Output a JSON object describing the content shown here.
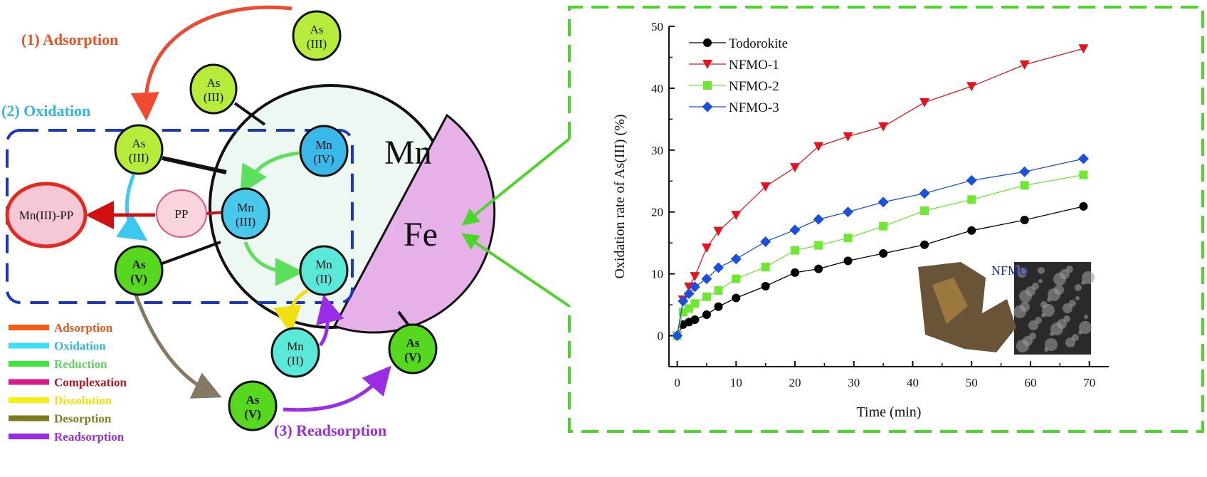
{
  "diagram": {
    "steps": {
      "adsorption": "(1) Adsorption",
      "oxidation": "(2) Oxidation",
      "readsorption": "(3) Readsorption"
    },
    "mineral_labels": {
      "mn": "Mn",
      "fe": "Fe"
    },
    "nodes": [
      {
        "id": "as3-top",
        "l1": "As",
        "l2": "(III)"
      },
      {
        "id": "as3-mid",
        "l1": "As",
        "l2": "(III)"
      },
      {
        "id": "as3-box",
        "l1": "As",
        "l2": "(III)"
      },
      {
        "id": "mn4",
        "l1": "Mn",
        "l2": "(IV)"
      },
      {
        "id": "mn3",
        "l1": "Mn",
        "l2": "(III)"
      },
      {
        "id": "mn2-in",
        "l1": "Mn",
        "l2": "(II)"
      },
      {
        "id": "pp",
        "l1": "PP",
        "l2": ""
      },
      {
        "id": "mn3-pp",
        "l1": "Mn(III)-PP",
        "l2": ""
      },
      {
        "id": "as5-box",
        "l1": "As",
        "l2": "(V)"
      },
      {
        "id": "mn2-out",
        "l1": "Mn",
        "l2": "(II)"
      },
      {
        "id": "as5-right",
        "l1": "As",
        "l2": "(V)"
      },
      {
        "id": "as5-bottom",
        "l1": "As",
        "l2": "(V)"
      }
    ],
    "legend": [
      {
        "label": "Adsorption",
        "color": "#f55a14",
        "text_color": "#e8561a"
      },
      {
        "label": "Oxidation",
        "color": "#3be0f5",
        "text_color": "#2fb6e6"
      },
      {
        "label": "Reduction",
        "color": "#3de83d",
        "text_color": "#5cd65c"
      },
      {
        "label": "Complexation",
        "color": "#d81b8c",
        "text_color": "#c0141e"
      },
      {
        "label": "Dissolution",
        "color": "#f7f012",
        "text_color": "#f0e010"
      },
      {
        "label": "Desorption",
        "color": "#7a7a1e",
        "text_color": "#808020"
      },
      {
        "label": "Readsorption",
        "color": "#9a2ce8",
        "text_color": "#9a2ce8"
      }
    ]
  },
  "chart_data": {
    "type": "line",
    "title": "",
    "xlabel": "Time (min)",
    "ylabel": "Oxidation rate of As(III) (%)",
    "xlim": [
      -1.4,
      73.3
    ],
    "ylim": [
      -5,
      50
    ],
    "xticks": [
      0,
      10,
      20,
      30,
      40,
      50,
      60,
      70
    ],
    "yticks": [
      0,
      10,
      20,
      30,
      40,
      50
    ],
    "legend_position": "top-left",
    "inset_label": "NFMO",
    "x": [
      0,
      1,
      2,
      3,
      5,
      7,
      10,
      15,
      20,
      24,
      29,
      35,
      42,
      50,
      59,
      69
    ],
    "series": [
      {
        "name": "Todorokite",
        "color": "#000000",
        "marker": "circle",
        "values": [
          0,
          1.8,
          2.2,
          2.6,
          3.4,
          4.7,
          6.1,
          8.0,
          10.2,
          10.8,
          12.1,
          13.3,
          14.7,
          17.0,
          18.7,
          20.9
        ]
      },
      {
        "name": "NFMO-1",
        "color": "#e8121e",
        "marker": "triangle-down",
        "values": [
          0,
          5.8,
          7.9,
          9.6,
          14.2,
          16.9,
          19.5,
          24.1,
          27.2,
          30.6,
          32.2,
          33.8,
          37.7,
          40.3,
          43.8,
          46.4
        ]
      },
      {
        "name": "NFMO-2",
        "color": "#6ee830",
        "marker": "square",
        "values": [
          0,
          3.8,
          4.4,
          5.2,
          6.3,
          7.3,
          9.2,
          11.1,
          13.8,
          14.6,
          15.8,
          17.7,
          20.2,
          22.0,
          24.3,
          26.0
        ]
      },
      {
        "name": "NFMO-3",
        "color": "#1a4fe0",
        "marker": "diamond",
        "values": [
          0,
          5.6,
          6.8,
          7.9,
          9.2,
          11.0,
          12.4,
          15.2,
          17.1,
          18.8,
          20.0,
          21.6,
          23.0,
          25.1,
          26.5,
          28.6
        ]
      }
    ]
  }
}
